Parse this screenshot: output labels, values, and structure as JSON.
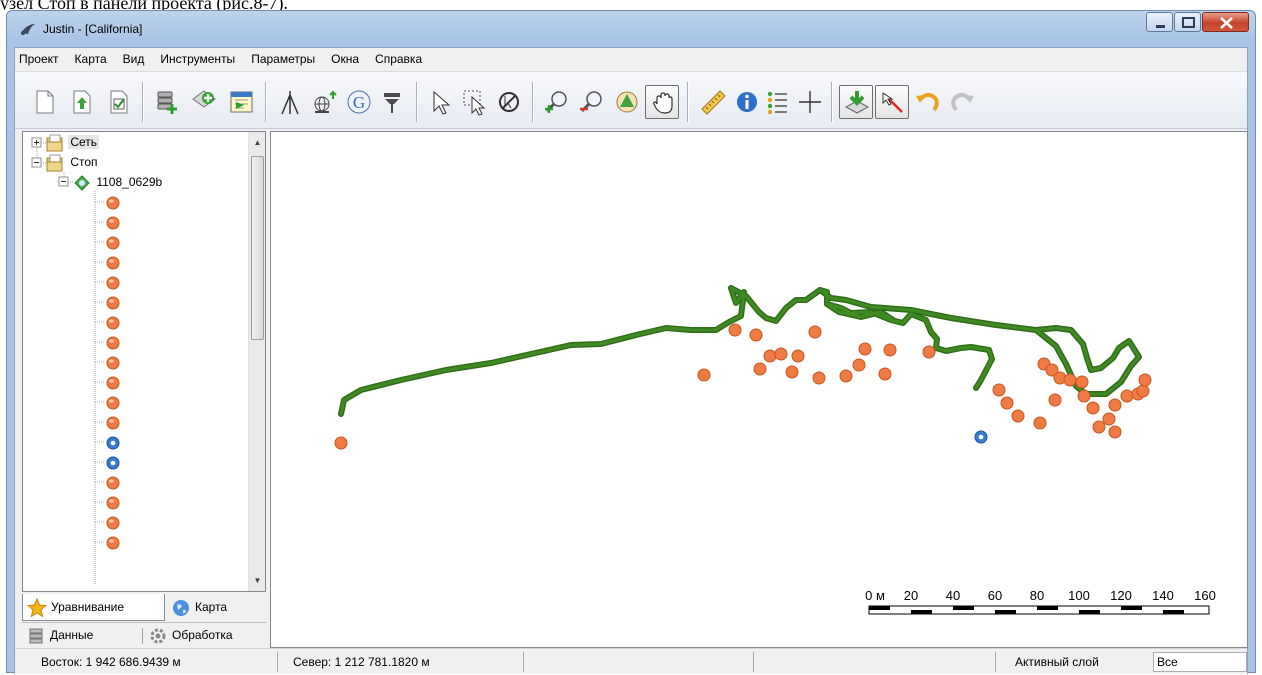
{
  "page_caption": "узел Стоп в панели проекта (рис.8-7).",
  "window": {
    "title": "Justin - [California]"
  },
  "menu": [
    "Проект",
    "Карта",
    "Вид",
    "Инструменты",
    "Параметры",
    "Окна",
    "Справка"
  ],
  "toolbar": {
    "buttons": [
      "new-file",
      "open-file",
      "save-file",
      "add-database",
      "add-item",
      "import-data",
      "tripod",
      "globe-settings",
      "google",
      "antenna",
      "select-arrow",
      "select-rectangle",
      "no-select",
      "zoom-in",
      "zoom-out",
      "zoom-extent",
      "pan-hand",
      "measure-ruler",
      "info",
      "legend-list",
      "crosshair",
      "download-layer",
      "draw-line",
      "undo",
      "redo"
    ],
    "pressed": [
      "pan-hand",
      "download-layer",
      "draw-line"
    ]
  },
  "tree": {
    "root1": "Сеть",
    "root2": "Стоп",
    "session": "1108_0629b",
    "points": [
      "stop",
      "stop",
      "stop",
      "stop",
      "stop",
      "stop",
      "stop",
      "stop",
      "stop",
      "stop",
      "stop",
      "stop",
      "control",
      "control",
      "stop",
      "stop",
      "stop",
      "stop"
    ]
  },
  "tabs": {
    "top": [
      {
        "label": "Уравнивание",
        "active": true
      },
      {
        "label": "Карта",
        "active": false
      }
    ],
    "bottom": [
      {
        "label": "Данные",
        "active": false
      },
      {
        "label": "Обработка",
        "active": false
      }
    ]
  },
  "scale_bar": {
    "unit": "м",
    "ticks": [
      "0 м",
      "20",
      "40",
      "60",
      "80",
      "100",
      "120",
      "140",
      "160"
    ]
  },
  "status": {
    "east": "Восток: 1 942 686.9439 м",
    "north": "Север: 1 212 781.1820 м",
    "active_layer_label": "Активный слой",
    "active_layer_value": "Все"
  },
  "colors": {
    "track": "#3f8a22",
    "stop_point": "#f07a44",
    "control_point": "#3a7bd5",
    "title_bar": "#a9c4e4"
  }
}
